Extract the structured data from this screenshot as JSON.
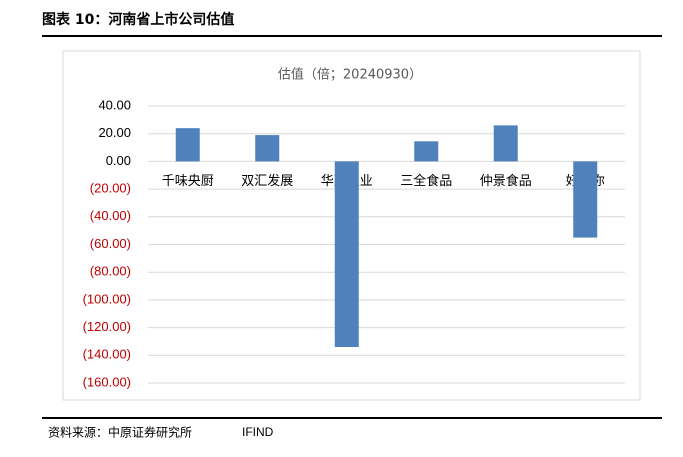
{
  "header": {
    "title": "图表 10：河南省上市公司估值"
  },
  "chart_data": {
    "type": "bar",
    "title": "估值（倍；20240930）",
    "categories": [
      "千味央厨",
      "双汇发展",
      "华英农业",
      "三全食品",
      "仲景食品",
      "好想你"
    ],
    "values": [
      24,
      19,
      -134,
      14.5,
      26,
      -55
    ],
    "color": "#4f81bd",
    "ylim": [
      -160,
      40
    ],
    "yticks": [
      {
        "value": 40,
        "label": "40.00"
      },
      {
        "value": 20,
        "label": "20.00"
      },
      {
        "value": 0,
        "label": "0.00"
      },
      {
        "value": -20,
        "label": "(20.00)"
      },
      {
        "value": -40,
        "label": "(40.00)"
      },
      {
        "value": -60,
        "label": "(60.00)"
      },
      {
        "value": -80,
        "label": "(80.00)"
      },
      {
        "value": -100,
        "label": "(100.00)"
      },
      {
        "value": -120,
        "label": "(120.00)"
      },
      {
        "value": -140,
        "label": "(140.00)"
      },
      {
        "value": -160,
        "label": "(160.00)"
      }
    ],
    "negative_tick_color": "#c00000",
    "grid": true
  },
  "footer": {
    "source": "资料来源：中原证券研究所",
    "provider": "IFIND"
  }
}
